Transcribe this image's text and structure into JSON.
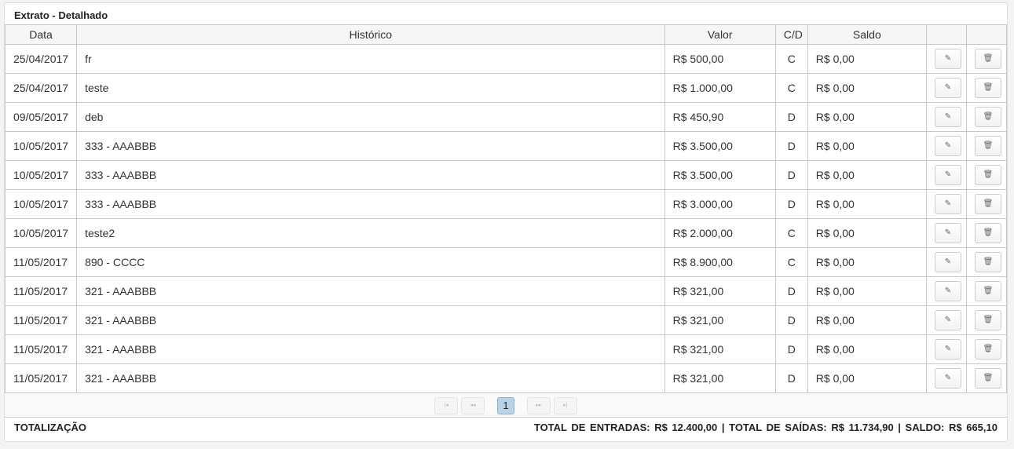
{
  "title": "Extrato - Detalhado",
  "columns": {
    "data": "Data",
    "historico": "Histórico",
    "valor": "Valor",
    "cd": "C/D",
    "saldo": "Saldo"
  },
  "icons": {
    "edit": "pencil-icon",
    "delete": "trash-icon"
  },
  "rows": [
    {
      "data": "25/04/2017",
      "historico": "fr",
      "valor": "R$ 500,00",
      "cd": "C",
      "saldo": "R$ 0,00"
    },
    {
      "data": "25/04/2017",
      "historico": "teste",
      "valor": "R$ 1.000,00",
      "cd": "C",
      "saldo": "R$ 0,00"
    },
    {
      "data": "09/05/2017",
      "historico": "deb",
      "valor": "R$ 450,90",
      "cd": "D",
      "saldo": "R$ 0,00"
    },
    {
      "data": "10/05/2017",
      "historico": "333 - AAABBB",
      "valor": "R$ 3.500,00",
      "cd": "D",
      "saldo": "R$ 0,00"
    },
    {
      "data": "10/05/2017",
      "historico": "333 - AAABBB",
      "valor": "R$ 3.500,00",
      "cd": "D",
      "saldo": "R$ 0,00"
    },
    {
      "data": "10/05/2017",
      "historico": "333 - AAABBB",
      "valor": "R$ 3.000,00",
      "cd": "D",
      "saldo": "R$ 0,00"
    },
    {
      "data": "10/05/2017",
      "historico": "teste2",
      "valor": "R$ 2.000,00",
      "cd": "C",
      "saldo": "R$ 0,00"
    },
    {
      "data": "11/05/2017",
      "historico": "890 - CCCC",
      "valor": "R$ 8.900,00",
      "cd": "C",
      "saldo": "R$ 0,00"
    },
    {
      "data": "11/05/2017",
      "historico": "321 - AAABBB",
      "valor": "R$ 321,00",
      "cd": "D",
      "saldo": "R$ 0,00"
    },
    {
      "data": "11/05/2017",
      "historico": "321 - AAABBB",
      "valor": "R$ 321,00",
      "cd": "D",
      "saldo": "R$ 0,00"
    },
    {
      "data": "11/05/2017",
      "historico": "321 - AAABBB",
      "valor": "R$ 321,00",
      "cd": "D",
      "saldo": "R$ 0,00"
    },
    {
      "data": "11/05/2017",
      "historico": "321 - AAABBB",
      "valor": "R$ 321,00",
      "cd": "D",
      "saldo": "R$ 0,00"
    }
  ],
  "pager": {
    "first": "|◂",
    "prev": "◂◂",
    "current": "1",
    "next": "▸▸",
    "last": "▸|"
  },
  "totals": {
    "label": "TOTALIZAÇÃO",
    "summary": "TOTAL DE ENTRADAS:  R$ 12.400,00 | TOTAL DE SAÍDAS:  R$ 11.734,90 | SALDO:  R$ 665,10"
  }
}
